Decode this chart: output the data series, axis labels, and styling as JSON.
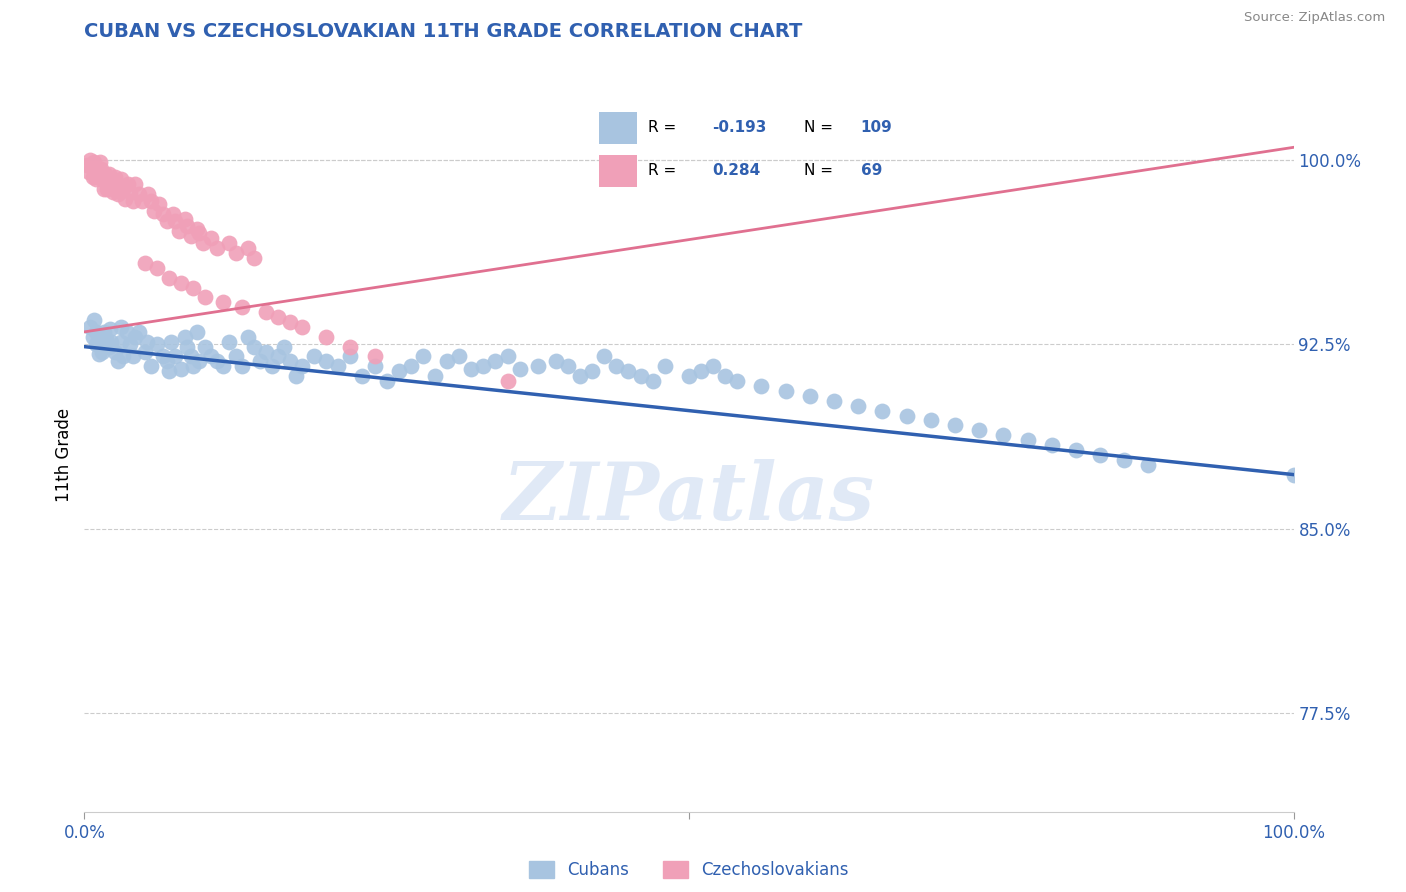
{
  "title": "CUBAN VS CZECHOSLOVAKIAN 11TH GRADE CORRELATION CHART",
  "source": "Source: ZipAtlas.com",
  "ylabel": "11th Grade",
  "xlim": [
    0.0,
    1.0
  ],
  "ylim": [
    0.735,
    1.025
  ],
  "yticks": [
    0.775,
    0.85,
    0.925,
    1.0
  ],
  "ytick_labels": [
    "77.5%",
    "85.0%",
    "92.5%",
    "100.0%"
  ],
  "xtick_labels": [
    "0.0%",
    "100.0%"
  ],
  "legend_labels": [
    "Cubans",
    "Czechoslovakians"
  ],
  "blue_color": "#a8c4e0",
  "pink_color": "#f0a0b8",
  "blue_line_color": "#3060b0",
  "pink_line_color": "#e07090",
  "blue_R": -0.193,
  "blue_N": 109,
  "pink_R": 0.284,
  "pink_N": 69,
  "background_color": "#ffffff",
  "grid_color": "#cccccc",
  "title_color": "#3060b0",
  "watermark": "ZIPatlas",
  "watermark_color": "#c8d8f0",
  "blue_line_x0": 0.0,
  "blue_line_y0": 0.924,
  "blue_line_x1": 1.0,
  "blue_line_y1": 0.872,
  "pink_line_x0": 0.0,
  "pink_line_y0": 0.93,
  "pink_line_x1": 1.0,
  "pink_line_y1": 1.005,
  "blue_dots_x": [
    0.005,
    0.007,
    0.008,
    0.01,
    0.01,
    0.012,
    0.014,
    0.015,
    0.015,
    0.016,
    0.018,
    0.02,
    0.021,
    0.022,
    0.025,
    0.028,
    0.03,
    0.03,
    0.032,
    0.035,
    0.038,
    0.04,
    0.042,
    0.045,
    0.05,
    0.052,
    0.055,
    0.06,
    0.065,
    0.068,
    0.07,
    0.072,
    0.075,
    0.08,
    0.083,
    0.085,
    0.088,
    0.09,
    0.093,
    0.095,
    0.1,
    0.105,
    0.11,
    0.115,
    0.12,
    0.125,
    0.13,
    0.135,
    0.14,
    0.145,
    0.15,
    0.155,
    0.16,
    0.165,
    0.17,
    0.175,
    0.18,
    0.19,
    0.2,
    0.21,
    0.22,
    0.23,
    0.24,
    0.25,
    0.26,
    0.27,
    0.28,
    0.29,
    0.3,
    0.31,
    0.32,
    0.33,
    0.34,
    0.35,
    0.36,
    0.375,
    0.39,
    0.4,
    0.41,
    0.42,
    0.43,
    0.44,
    0.45,
    0.46,
    0.47,
    0.48,
    0.5,
    0.51,
    0.52,
    0.53,
    0.54,
    0.56,
    0.58,
    0.6,
    0.62,
    0.64,
    0.66,
    0.68,
    0.7,
    0.72,
    0.74,
    0.76,
    0.78,
    0.8,
    0.82,
    0.84,
    0.86,
    0.88,
    1.0
  ],
  "blue_dots_y": [
    0.932,
    0.928,
    0.935,
    0.925,
    0.93,
    0.921,
    0.928,
    0.925,
    0.922,
    0.93,
    0.927,
    0.924,
    0.931,
    0.926,
    0.922,
    0.918,
    0.932,
    0.926,
    0.92,
    0.93,
    0.925,
    0.92,
    0.928,
    0.93,
    0.922,
    0.926,
    0.916,
    0.925,
    0.92,
    0.918,
    0.914,
    0.926,
    0.92,
    0.915,
    0.928,
    0.924,
    0.92,
    0.916,
    0.93,
    0.918,
    0.924,
    0.92,
    0.918,
    0.916,
    0.926,
    0.92,
    0.916,
    0.928,
    0.924,
    0.918,
    0.922,
    0.916,
    0.92,
    0.924,
    0.918,
    0.912,
    0.916,
    0.92,
    0.918,
    0.916,
    0.92,
    0.912,
    0.916,
    0.91,
    0.914,
    0.916,
    0.92,
    0.912,
    0.918,
    0.92,
    0.915,
    0.916,
    0.918,
    0.92,
    0.915,
    0.916,
    0.918,
    0.916,
    0.912,
    0.914,
    0.92,
    0.916,
    0.914,
    0.912,
    0.91,
    0.916,
    0.912,
    0.914,
    0.916,
    0.912,
    0.91,
    0.908,
    0.906,
    0.904,
    0.902,
    0.9,
    0.898,
    0.896,
    0.894,
    0.892,
    0.89,
    0.888,
    0.886,
    0.884,
    0.882,
    0.88,
    0.878,
    0.876,
    0.872
  ],
  "pink_dots_x": [
    0.002,
    0.004,
    0.005,
    0.006,
    0.007,
    0.008,
    0.009,
    0.01,
    0.011,
    0.012,
    0.013,
    0.014,
    0.015,
    0.016,
    0.017,
    0.018,
    0.019,
    0.02,
    0.022,
    0.024,
    0.025,
    0.027,
    0.028,
    0.03,
    0.032,
    0.034,
    0.036,
    0.038,
    0.04,
    0.042,
    0.045,
    0.048,
    0.05,
    0.053,
    0.055,
    0.058,
    0.06,
    0.062,
    0.065,
    0.068,
    0.07,
    0.073,
    0.075,
    0.078,
    0.08,
    0.083,
    0.085,
    0.088,
    0.09,
    0.093,
    0.095,
    0.098,
    0.1,
    0.105,
    0.11,
    0.115,
    0.12,
    0.125,
    0.13,
    0.135,
    0.14,
    0.15,
    0.16,
    0.17,
    0.18,
    0.2,
    0.22,
    0.24,
    0.35
  ],
  "pink_dots_y": [
    0.998,
    0.995,
    1.0,
    0.997,
    0.993,
    0.999,
    0.995,
    0.992,
    0.996,
    0.993,
    0.999,
    0.996,
    0.992,
    0.988,
    0.994,
    0.991,
    0.988,
    0.994,
    0.99,
    0.987,
    0.993,
    0.99,
    0.986,
    0.992,
    0.988,
    0.984,
    0.99,
    0.987,
    0.983,
    0.99,
    0.986,
    0.983,
    0.958,
    0.986,
    0.983,
    0.979,
    0.956,
    0.982,
    0.978,
    0.975,
    0.952,
    0.978,
    0.975,
    0.971,
    0.95,
    0.976,
    0.973,
    0.969,
    0.948,
    0.972,
    0.97,
    0.966,
    0.944,
    0.968,
    0.964,
    0.942,
    0.966,
    0.962,
    0.94,
    0.964,
    0.96,
    0.938,
    0.936,
    0.934,
    0.932,
    0.928,
    0.924,
    0.92,
    0.91
  ]
}
